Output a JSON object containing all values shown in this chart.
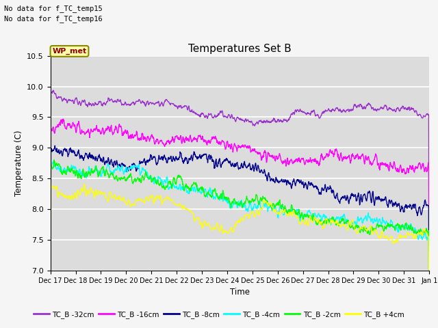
{
  "title": "Temperatures Set B",
  "xlabel": "Time",
  "ylabel": "Temperature (C)",
  "ylim": [
    7.0,
    10.5
  ],
  "annotations": [
    "No data for f_TC_temp15",
    "No data for f_TC_temp16"
  ],
  "wp_met_label": "WP_met",
  "legend_entries": [
    "TC_B -32cm",
    "TC_B -16cm",
    "TC_B -8cm",
    "TC_B -4cm",
    "TC_B -2cm",
    "TC_B +4cm"
  ],
  "line_colors": [
    "#9932CC",
    "#FF00FF",
    "#00008B",
    "#00FFFF",
    "#00FF00",
    "#FFFF00"
  ],
  "x_tick_labels": [
    "Dec 17",
    "Dec 18",
    "Dec 19",
    "Dec 20",
    "Dec 21",
    "Dec 22",
    "Dec 23",
    "Dec 24",
    "Dec 25",
    "Dec 26",
    "Dec 27",
    "Dec 28",
    "Dec 29",
    "Dec 30",
    "Dec 31",
    "Jan 1"
  ],
  "num_points": 1400,
  "bg_color": "#dcdcdc",
  "fig_bg": "#f5f5f5",
  "grid_color": "#ffffff"
}
